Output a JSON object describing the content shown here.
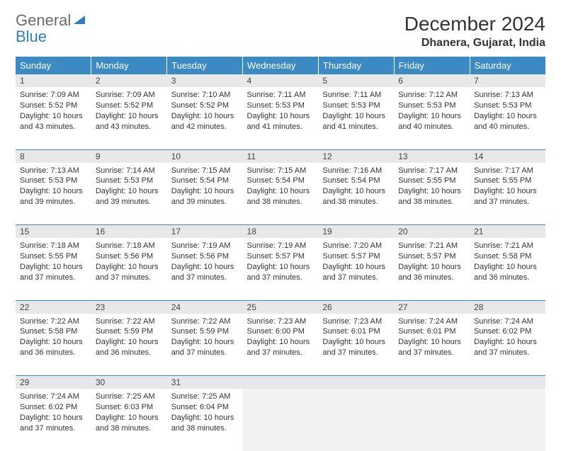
{
  "logo": {
    "general": "General",
    "blue": "Blue"
  },
  "title": "December 2024",
  "location": "Dhanera, Gujarat, India",
  "colors": {
    "header_bg": "#3b8ac4",
    "header_text": "#ffffff",
    "daynum_bg": "#e8e8e8",
    "border": "#3b8ac4",
    "logo_general": "#6a6a6a",
    "logo_blue": "#2f7fbf",
    "body_text": "#333333"
  },
  "day_headers": [
    "Sunday",
    "Monday",
    "Tuesday",
    "Wednesday",
    "Thursday",
    "Friday",
    "Saturday"
  ],
  "weeks": [
    [
      {
        "n": "1",
        "sr": "Sunrise: 7:09 AM",
        "ss": "Sunset: 5:52 PM",
        "dl": "Daylight: 10 hours and 43 minutes."
      },
      {
        "n": "2",
        "sr": "Sunrise: 7:09 AM",
        "ss": "Sunset: 5:52 PM",
        "dl": "Daylight: 10 hours and 43 minutes."
      },
      {
        "n": "3",
        "sr": "Sunrise: 7:10 AM",
        "ss": "Sunset: 5:52 PM",
        "dl": "Daylight: 10 hours and 42 minutes."
      },
      {
        "n": "4",
        "sr": "Sunrise: 7:11 AM",
        "ss": "Sunset: 5:53 PM",
        "dl": "Daylight: 10 hours and 41 minutes."
      },
      {
        "n": "5",
        "sr": "Sunrise: 7:11 AM",
        "ss": "Sunset: 5:53 PM",
        "dl": "Daylight: 10 hours and 41 minutes."
      },
      {
        "n": "6",
        "sr": "Sunrise: 7:12 AM",
        "ss": "Sunset: 5:53 PM",
        "dl": "Daylight: 10 hours and 40 minutes."
      },
      {
        "n": "7",
        "sr": "Sunrise: 7:13 AM",
        "ss": "Sunset: 5:53 PM",
        "dl": "Daylight: 10 hours and 40 minutes."
      }
    ],
    [
      {
        "n": "8",
        "sr": "Sunrise: 7:13 AM",
        "ss": "Sunset: 5:53 PM",
        "dl": "Daylight: 10 hours and 39 minutes."
      },
      {
        "n": "9",
        "sr": "Sunrise: 7:14 AM",
        "ss": "Sunset: 5:53 PM",
        "dl": "Daylight: 10 hours and 39 minutes."
      },
      {
        "n": "10",
        "sr": "Sunrise: 7:15 AM",
        "ss": "Sunset: 5:54 PM",
        "dl": "Daylight: 10 hours and 39 minutes."
      },
      {
        "n": "11",
        "sr": "Sunrise: 7:15 AM",
        "ss": "Sunset: 5:54 PM",
        "dl": "Daylight: 10 hours and 38 minutes."
      },
      {
        "n": "12",
        "sr": "Sunrise: 7:16 AM",
        "ss": "Sunset: 5:54 PM",
        "dl": "Daylight: 10 hours and 38 minutes."
      },
      {
        "n": "13",
        "sr": "Sunrise: 7:17 AM",
        "ss": "Sunset: 5:55 PM",
        "dl": "Daylight: 10 hours and 38 minutes."
      },
      {
        "n": "14",
        "sr": "Sunrise: 7:17 AM",
        "ss": "Sunset: 5:55 PM",
        "dl": "Daylight: 10 hours and 37 minutes."
      }
    ],
    [
      {
        "n": "15",
        "sr": "Sunrise: 7:18 AM",
        "ss": "Sunset: 5:55 PM",
        "dl": "Daylight: 10 hours and 37 minutes."
      },
      {
        "n": "16",
        "sr": "Sunrise: 7:18 AM",
        "ss": "Sunset: 5:56 PM",
        "dl": "Daylight: 10 hours and 37 minutes."
      },
      {
        "n": "17",
        "sr": "Sunrise: 7:19 AM",
        "ss": "Sunset: 5:56 PM",
        "dl": "Daylight: 10 hours and 37 minutes."
      },
      {
        "n": "18",
        "sr": "Sunrise: 7:19 AM",
        "ss": "Sunset: 5:57 PM",
        "dl": "Daylight: 10 hours and 37 minutes."
      },
      {
        "n": "19",
        "sr": "Sunrise: 7:20 AM",
        "ss": "Sunset: 5:57 PM",
        "dl": "Daylight: 10 hours and 37 minutes."
      },
      {
        "n": "20",
        "sr": "Sunrise: 7:21 AM",
        "ss": "Sunset: 5:57 PM",
        "dl": "Daylight: 10 hours and 36 minutes."
      },
      {
        "n": "21",
        "sr": "Sunrise: 7:21 AM",
        "ss": "Sunset: 5:58 PM",
        "dl": "Daylight: 10 hours and 36 minutes."
      }
    ],
    [
      {
        "n": "22",
        "sr": "Sunrise: 7:22 AM",
        "ss": "Sunset: 5:58 PM",
        "dl": "Daylight: 10 hours and 36 minutes."
      },
      {
        "n": "23",
        "sr": "Sunrise: 7:22 AM",
        "ss": "Sunset: 5:59 PM",
        "dl": "Daylight: 10 hours and 36 minutes."
      },
      {
        "n": "24",
        "sr": "Sunrise: 7:22 AM",
        "ss": "Sunset: 5:59 PM",
        "dl": "Daylight: 10 hours and 37 minutes."
      },
      {
        "n": "25",
        "sr": "Sunrise: 7:23 AM",
        "ss": "Sunset: 6:00 PM",
        "dl": "Daylight: 10 hours and 37 minutes."
      },
      {
        "n": "26",
        "sr": "Sunrise: 7:23 AM",
        "ss": "Sunset: 6:01 PM",
        "dl": "Daylight: 10 hours and 37 minutes."
      },
      {
        "n": "27",
        "sr": "Sunrise: 7:24 AM",
        "ss": "Sunset: 6:01 PM",
        "dl": "Daylight: 10 hours and 37 minutes."
      },
      {
        "n": "28",
        "sr": "Sunrise: 7:24 AM",
        "ss": "Sunset: 6:02 PM",
        "dl": "Daylight: 10 hours and 37 minutes."
      }
    ],
    [
      {
        "n": "29",
        "sr": "Sunrise: 7:24 AM",
        "ss": "Sunset: 6:02 PM",
        "dl": "Daylight: 10 hours and 37 minutes."
      },
      {
        "n": "30",
        "sr": "Sunrise: 7:25 AM",
        "ss": "Sunset: 6:03 PM",
        "dl": "Daylight: 10 hours and 38 minutes."
      },
      {
        "n": "31",
        "sr": "Sunrise: 7:25 AM",
        "ss": "Sunset: 6:04 PM",
        "dl": "Daylight: 10 hours and 38 minutes."
      },
      null,
      null,
      null,
      null
    ]
  ]
}
